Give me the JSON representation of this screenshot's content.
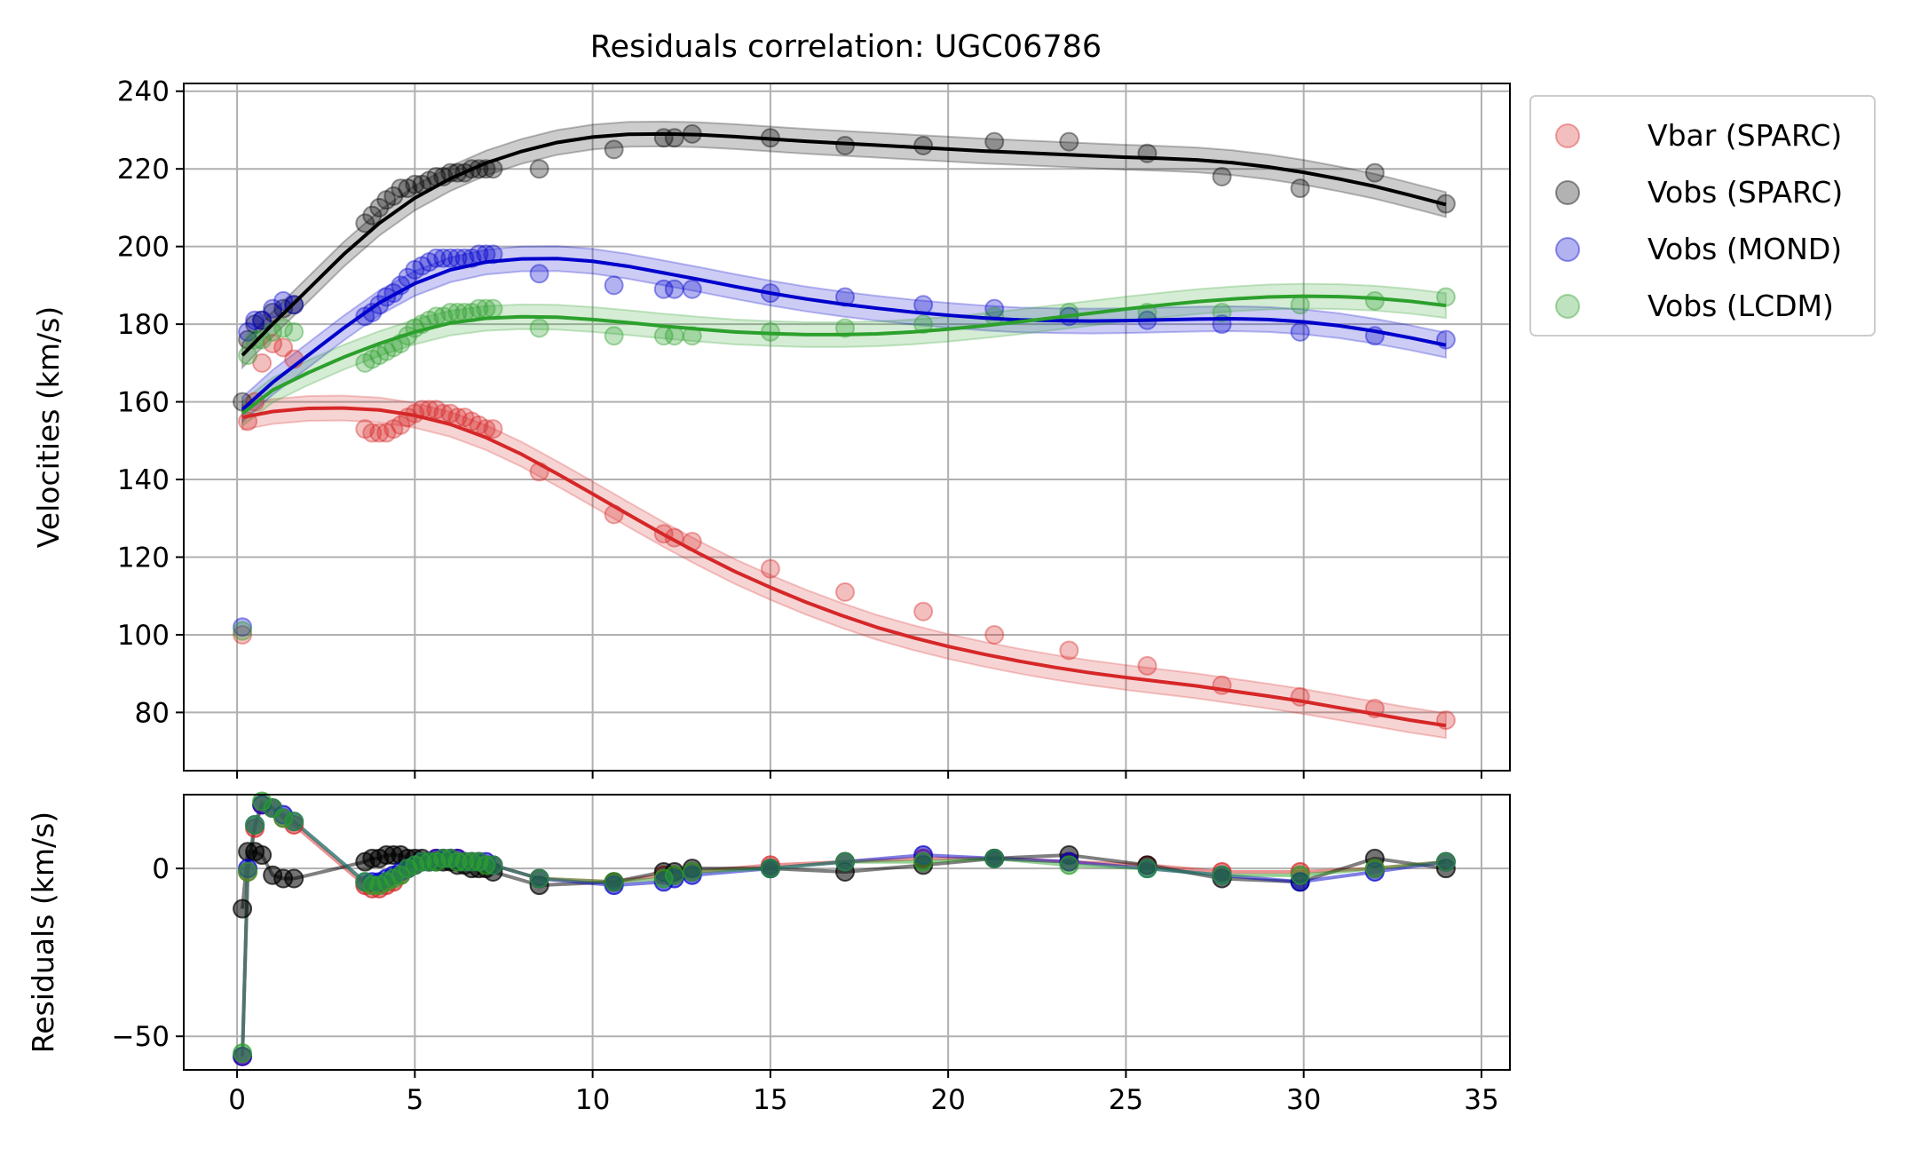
{
  "chart_data": [
    {
      "type": "scatter",
      "title": "Residuals correlation: UGC06786",
      "xlabel": "",
      "ylabel": "Velocities (km/s)",
      "xlim": [
        -1.5,
        35.8
      ],
      "ylim": [
        65,
        242
      ],
      "xticks": [
        0,
        5,
        10,
        15,
        20,
        25,
        30,
        35
      ],
      "yticks": [
        80,
        100,
        120,
        140,
        160,
        180,
        200,
        220,
        240
      ],
      "ytick_labels": [
        "80",
        "100",
        "120",
        "140",
        "160",
        "180",
        "200",
        "220",
        "240"
      ],
      "grid": true,
      "legend_position": "outside-top-right",
      "series": [
        {
          "name": "Vbar (SPARC)",
          "color": "#d62728",
          "x": [
            0.15,
            0.3,
            0.5,
            0.7,
            1.0,
            1.3,
            1.6,
            3.6,
            3.8,
            4.0,
            4.2,
            4.4,
            4.6,
            4.8,
            5.0,
            5.2,
            5.4,
            5.6,
            5.8,
            6.0,
            6.2,
            6.4,
            6.6,
            6.8,
            7.0,
            7.2,
            8.5,
            10.6,
            12.0,
            12.3,
            12.8,
            15.0,
            17.1,
            19.3,
            21.3,
            23.4,
            25.6,
            27.7,
            29.9,
            32.0,
            34.0
          ],
          "y": [
            100,
            155,
            160,
            170,
            175,
            174,
            171,
            153,
            152,
            152,
            152,
            153,
            154,
            156,
            157,
            158,
            158,
            158,
            157,
            157,
            156,
            156,
            155,
            154,
            153,
            153,
            142,
            131,
            126,
            125,
            124,
            117,
            111,
            106,
            100,
            96,
            92,
            87,
            84,
            81,
            78
          ]
        },
        {
          "name": "Vobs (SPARC)",
          "color": "#000000",
          "x": [
            0.15,
            0.3,
            0.5,
            0.7,
            1.0,
            1.3,
            1.6,
            3.6,
            3.8,
            4.0,
            4.2,
            4.4,
            4.6,
            4.8,
            5.0,
            5.2,
            5.4,
            5.6,
            5.8,
            6.0,
            6.2,
            6.4,
            6.6,
            6.8,
            7.0,
            7.2,
            8.5,
            10.6,
            12.0,
            12.3,
            12.8,
            15.0,
            17.1,
            19.3,
            21.3,
            23.4,
            25.6,
            27.7,
            29.9,
            32.0,
            34.0
          ],
          "y": [
            160,
            176,
            180,
            181,
            183,
            184,
            185,
            206,
            208,
            210,
            212,
            213,
            215,
            215,
            216,
            216,
            217,
            218,
            218,
            219,
            219,
            219,
            220,
            220,
            220,
            220,
            220,
            225,
            228,
            228,
            229,
            228,
            226,
            226,
            227,
            227,
            224,
            218,
            215,
            219,
            211
          ]
        },
        {
          "name": "Vobs (MOND)",
          "color": "#0000cc",
          "x": [
            0.15,
            0.3,
            0.5,
            0.7,
            1.0,
            1.3,
            1.6,
            3.6,
            3.8,
            4.0,
            4.2,
            4.4,
            4.6,
            4.8,
            5.0,
            5.2,
            5.4,
            5.6,
            5.8,
            6.0,
            6.2,
            6.4,
            6.6,
            6.8,
            7.0,
            7.2,
            8.5,
            10.6,
            12.0,
            12.3,
            12.8,
            15.0,
            17.1,
            19.3,
            21.3,
            23.4,
            25.6,
            27.7,
            29.9,
            32.0,
            34.0
          ],
          "y": [
            102,
            178,
            181,
            181,
            184,
            186,
            185,
            182,
            183,
            185,
            187,
            188,
            190,
            192,
            194,
            195,
            196,
            197,
            197,
            197,
            197,
            197,
            197,
            198,
            198,
            198,
            193,
            190,
            189,
            189,
            189,
            188,
            187,
            185,
            184,
            182,
            181,
            180,
            178,
            177,
            176
          ]
        },
        {
          "name": "Vobs (LCDM)",
          "color": "#2ca02c",
          "x": [
            0.15,
            0.3,
            0.5,
            0.7,
            1.0,
            1.3,
            1.6,
            3.6,
            3.8,
            4.0,
            4.2,
            4.4,
            4.6,
            4.8,
            5.0,
            5.2,
            5.4,
            5.6,
            5.8,
            6.0,
            6.2,
            6.4,
            6.6,
            6.8,
            7.0,
            7.2,
            8.5,
            10.6,
            12.0,
            12.3,
            12.8,
            15.0,
            17.1,
            19.3,
            21.3,
            23.4,
            25.6,
            27.7,
            29.9,
            32.0,
            34.0
          ],
          "y": [
            101,
            172,
            176,
            176,
            178,
            179,
            178,
            170,
            171,
            172,
            173,
            174,
            175,
            177,
            179,
            180,
            181,
            182,
            182,
            183,
            183,
            183,
            183,
            184,
            184,
            184,
            179,
            177,
            177,
            177,
            177,
            178,
            179,
            180,
            182,
            183,
            183,
            183,
            185,
            186,
            187
          ]
        }
      ],
      "fits": [
        {
          "color": "#d62728",
          "x": [
            0.15,
            1,
            2,
            3,
            4,
            5,
            6,
            7,
            8,
            9,
            10,
            11,
            12,
            13,
            14,
            15,
            16,
            17,
            18,
            19,
            20,
            21,
            22,
            23,
            24,
            25,
            26,
            27,
            28,
            29,
            30,
            31,
            32,
            33,
            34
          ],
          "y": [
            156,
            157.5,
            158.3,
            158.4,
            157.9,
            156.5,
            154.2,
            150.8,
            146.5,
            141.5,
            136.3,
            131,
            125.8,
            120.9,
            116.3,
            112.2,
            108.4,
            105,
            101.9,
            99.3,
            97,
            95,
            93.2,
            91.6,
            90.2,
            89,
            87.9,
            86.8,
            85.5,
            84.2,
            82.8,
            81.2,
            79.6,
            78,
            76.6
          ]
        },
        {
          "color": "#000000",
          "x": [
            0.15,
            1,
            2,
            3,
            4,
            5,
            6,
            7,
            8,
            9,
            10,
            11,
            12,
            13,
            14,
            15,
            16,
            17,
            18,
            19,
            20,
            21,
            22,
            23,
            24,
            25,
            26,
            27,
            28,
            29,
            30,
            31,
            32,
            33,
            34
          ],
          "y": [
            172,
            180,
            189,
            198,
            206,
            212.5,
            217.5,
            221.5,
            224.5,
            226.8,
            228.2,
            228.9,
            229,
            228.8,
            228.3,
            227.7,
            227.1,
            226.6,
            226.1,
            225.6,
            225.1,
            224.6,
            224.2,
            223.8,
            223.4,
            223,
            222.7,
            222.3,
            221.6,
            220.5,
            219.1,
            217.4,
            215.5,
            213.2,
            210.8
          ]
        },
        {
          "color": "#0000cc",
          "x": [
            0.15,
            1,
            2,
            3,
            4,
            5,
            6,
            7,
            8,
            9,
            10,
            11,
            12,
            13,
            14,
            15,
            16,
            17,
            18,
            19,
            20,
            21,
            22,
            23,
            24,
            25,
            26,
            27,
            28,
            29,
            30,
            31,
            32,
            33,
            34
          ],
          "y": [
            158,
            165,
            172,
            179,
            185.5,
            190.5,
            194,
            196,
            196.8,
            196.9,
            196.2,
            194.9,
            193.2,
            191.5,
            189.7,
            188,
            186.5,
            185.2,
            184.1,
            183.1,
            182.3,
            181.6,
            181.1,
            180.9,
            180.8,
            180.9,
            181.1,
            181.3,
            181.4,
            181.2,
            180.6,
            179.6,
            178.2,
            176.5,
            174.6
          ]
        },
        {
          "color": "#2ca02c",
          "x": [
            0.15,
            1,
            2,
            3,
            4,
            5,
            6,
            7,
            8,
            9,
            10,
            11,
            12,
            13,
            14,
            15,
            16,
            17,
            18,
            19,
            20,
            21,
            22,
            23,
            24,
            25,
            26,
            27,
            28,
            29,
            30,
            31,
            32,
            33,
            34
          ],
          "y": [
            157,
            163,
            167.5,
            171.5,
            175,
            178,
            180.3,
            181.5,
            181.9,
            181.8,
            181.2,
            180.4,
            179.5,
            178.7,
            178,
            177.6,
            177.3,
            177.3,
            177.5,
            178,
            178.7,
            179.6,
            180.6,
            181.7,
            182.8,
            183.9,
            184.9,
            185.8,
            186.5,
            187,
            187.2,
            187.1,
            186.7,
            185.9,
            184.8
          ]
        }
      ]
    },
    {
      "type": "line",
      "xlabel": "",
      "ylabel": "Residuals (km/s)",
      "xlim": [
        -1.5,
        35.8
      ],
      "ylim": [
        -60,
        22
      ],
      "xticks": [
        0,
        5,
        10,
        15,
        20,
        25,
        30,
        35
      ],
      "xtick_labels": [
        "0",
        "5",
        "10",
        "15",
        "20",
        "25",
        "30",
        "35"
      ],
      "yticks": [
        -50,
        0
      ],
      "ytick_labels": [
        "−50",
        "0"
      ],
      "grid": true,
      "series": [
        {
          "color": "#d62728",
          "x": [
            0.15,
            0.3,
            0.5,
            0.7,
            1.0,
            1.3,
            1.6,
            3.6,
            3.8,
            4.0,
            4.2,
            4.4,
            4.6,
            4.8,
            5.0,
            5.2,
            5.4,
            5.6,
            5.8,
            6.0,
            6.2,
            6.4,
            6.6,
            6.8,
            7.0,
            7.2,
            8.5,
            10.6,
            12.0,
            12.3,
            12.8,
            15.0,
            17.1,
            19.3,
            21.3,
            23.4,
            25.6,
            27.7,
            29.9,
            32.0,
            34.0
          ],
          "y": [
            -56,
            -1,
            12,
            19,
            18,
            15,
            13,
            -5,
            -6,
            -6,
            -5,
            -4,
            -2,
            0,
            1,
            2,
            2,
            3,
            3,
            3,
            3,
            2,
            2,
            2,
            1,
            1,
            -3,
            -4,
            -2,
            -2,
            -1,
            1,
            2,
            3,
            3,
            2,
            1,
            -1,
            -1,
            0,
            2
          ]
        },
        {
          "color": "#000000",
          "x": [
            0.15,
            0.3,
            0.5,
            0.7,
            1.0,
            1.3,
            1.6,
            3.6,
            3.8,
            4.0,
            4.2,
            4.4,
            4.6,
            4.8,
            5.0,
            5.2,
            5.4,
            5.6,
            5.8,
            6.0,
            6.2,
            6.4,
            6.6,
            6.8,
            7.0,
            7.2,
            8.5,
            10.6,
            12.0,
            12.3,
            12.8,
            15.0,
            17.1,
            19.3,
            21.3,
            23.4,
            25.6,
            27.7,
            29.9,
            32.0,
            34.0
          ],
          "y": [
            -12,
            5,
            5,
            4,
            -2,
            -3,
            -3,
            2,
            3,
            3,
            4,
            4,
            4,
            3,
            3,
            3,
            2,
            2,
            2,
            2,
            1,
            1,
            0,
            0,
            0,
            -1,
            -5,
            -4,
            -1,
            -1,
            0,
            0,
            -1,
            1,
            3,
            4,
            1,
            -3,
            -4,
            3,
            0
          ]
        },
        {
          "color": "#0000cc",
          "x": [
            0.15,
            0.3,
            0.5,
            0.7,
            1.0,
            1.3,
            1.6,
            3.6,
            3.8,
            4.0,
            4.2,
            4.4,
            4.6,
            4.8,
            5.0,
            5.2,
            5.4,
            5.6,
            5.8,
            6.0,
            6.2,
            6.4,
            6.6,
            6.8,
            7.0,
            7.2,
            8.5,
            10.6,
            12.0,
            12.3,
            12.8,
            15.0,
            17.1,
            19.3,
            21.3,
            23.4,
            25.6,
            27.7,
            29.9,
            32.0,
            34.0
          ],
          "y": [
            -56,
            0,
            13,
            19,
            18,
            16,
            14,
            -4,
            -4,
            -4,
            -3,
            -2,
            -1,
            0,
            1,
            2,
            2,
            3,
            3,
            3,
            3,
            2,
            2,
            2,
            2,
            1,
            -3,
            -5,
            -4,
            -3,
            -2,
            0,
            2,
            4,
            3,
            2,
            0,
            -2,
            -4,
            -1,
            2
          ]
        },
        {
          "color": "#2ca02c",
          "x": [
            0.15,
            0.3,
            0.5,
            0.7,
            1.0,
            1.3,
            1.6,
            3.6,
            3.8,
            4.0,
            4.2,
            4.4,
            4.6,
            4.8,
            5.0,
            5.2,
            5.4,
            5.6,
            5.8,
            6.0,
            6.2,
            6.4,
            6.6,
            6.8,
            7.0,
            7.2,
            8.5,
            10.6,
            12.0,
            12.3,
            12.8,
            15.0,
            17.1,
            19.3,
            21.3,
            23.4,
            25.6,
            27.7,
            29.9,
            32.0,
            34.0
          ],
          "y": [
            -55,
            -1,
            13,
            20,
            18,
            15,
            14,
            -4,
            -5,
            -5,
            -4,
            -3,
            -2,
            0,
            1,
            2,
            2,
            2,
            3,
            3,
            2,
            2,
            2,
            2,
            1,
            1,
            -3,
            -4,
            -3,
            -2,
            -1,
            0,
            2,
            2,
            3,
            1,
            0,
            -2,
            -2,
            0,
            2
          ]
        }
      ]
    }
  ]
}
